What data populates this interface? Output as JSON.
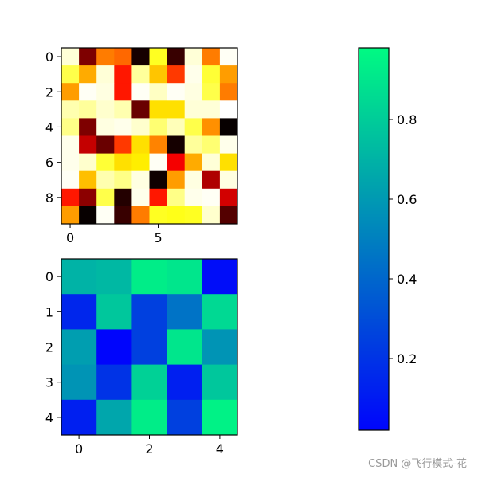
{
  "chart_data": [
    {
      "type": "heatmap",
      "colormap": "hot",
      "xticks": [
        0,
        5
      ],
      "yticks": [
        0,
        2,
        4,
        6,
        8
      ],
      "values": [
        [
          0.96,
          0.18,
          0.55,
          0.52,
          0.03,
          0.78,
          0.08,
          0.96,
          0.55,
          0.99
        ],
        [
          0.82,
          0.62,
          0.96,
          0.4,
          0.9,
          0.66,
          0.45,
          0.98,
          0.8,
          0.6
        ],
        [
          0.6,
          0.99,
          0.97,
          0.4,
          0.99,
          0.94,
          0.99,
          0.97,
          0.82,
          0.55
        ],
        [
          0.92,
          0.9,
          0.95,
          0.92,
          0.15,
          0.7,
          0.7,
          0.96,
          0.96,
          1.0
        ],
        [
          0.88,
          0.18,
          0.97,
          0.98,
          0.95,
          0.86,
          0.93,
          0.82,
          0.58,
          0.01
        ],
        [
          0.98,
          0.28,
          0.15,
          0.45,
          0.7,
          0.56,
          0.03,
          0.9,
          0.86,
          0.98
        ],
        [
          0.98,
          0.95,
          0.8,
          0.7,
          0.72,
          0.99,
          0.35,
          0.62,
          0.96,
          0.7
        ],
        [
          0.99,
          0.65,
          0.92,
          0.88,
          0.97,
          0.02,
          0.6,
          0.97,
          0.25,
          0.97
        ],
        [
          0.4,
          0.2,
          0.82,
          0.05,
          0.98,
          0.4,
          0.88,
          0.98,
          0.99,
          0.3
        ],
        [
          0.6,
          0.01,
          0.99,
          0.08,
          0.55,
          0.78,
          0.77,
          0.78,
          0.95,
          0.12
        ]
      ]
    },
    {
      "type": "heatmap",
      "colormap": "winter",
      "xticks": [
        0,
        2,
        4
      ],
      "yticks": [
        0,
        1,
        2,
        3,
        4
      ],
      "values": [
        [
          0.7,
          0.72,
          0.93,
          0.9,
          0.05
        ],
        [
          0.15,
          0.78,
          0.25,
          0.45,
          0.85
        ],
        [
          0.62,
          0.02,
          0.25,
          0.9,
          0.58
        ],
        [
          0.58,
          0.2,
          0.82,
          0.12,
          0.78
        ],
        [
          0.12,
          0.65,
          0.93,
          0.25,
          0.95
        ]
      ]
    },
    {
      "type": "colorbar",
      "colormap": "winter",
      "range": [
        0.02,
        0.98
      ],
      "ticks": [
        0.2,
        0.4,
        0.6,
        0.8
      ],
      "tick_labels": [
        "0.2",
        "0.4",
        "0.6",
        "0.8"
      ]
    }
  ],
  "watermark": "CSDN @飞行模式-花"
}
